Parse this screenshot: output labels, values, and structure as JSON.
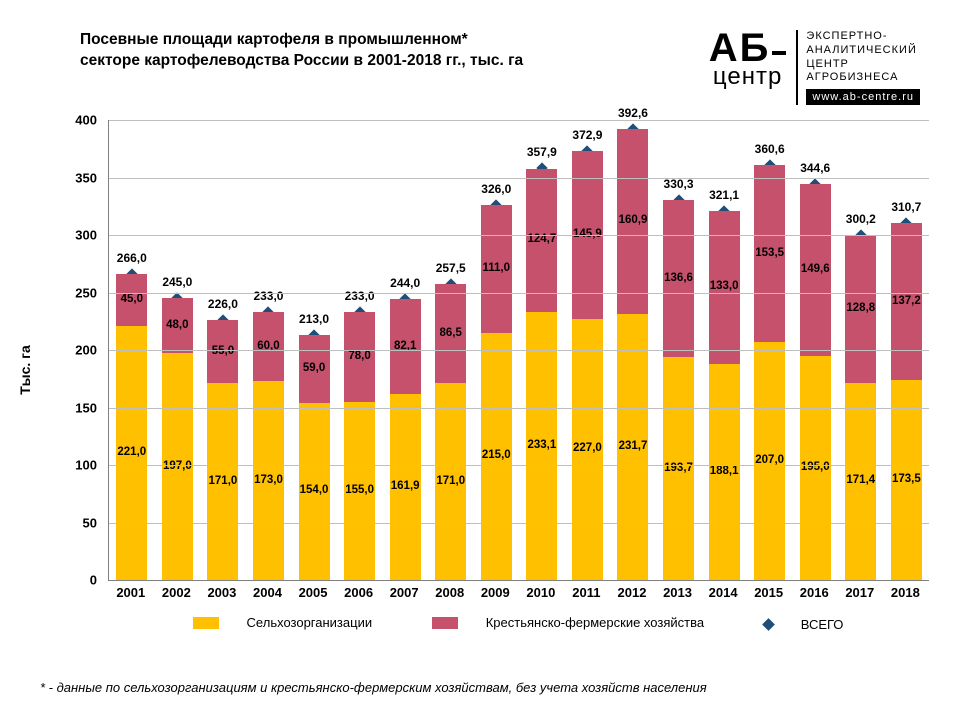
{
  "title_line1": "Посевные площади картофеля в промышленном*",
  "title_line2": "секторе картофелеводства России в 2001-2018 гг., тыс. га",
  "brand": {
    "ab": "АБ",
    "centr": "центр",
    "desc1": "ЭКСПЕРТНО-",
    "desc2": "АНАЛИТИЧЕСКИЙ",
    "desc3": "ЦЕНТР",
    "desc4": "АГРОБИЗНЕСА",
    "url": "www.ab-centre.ru"
  },
  "footnote": "* - данные по сельхозорганизациям и крестьянско-фермерским хозяйствам, без учета хозяйств населения",
  "chart": {
    "type": "stacked-bar-with-marker",
    "ylabel": "Тыс. га",
    "ylim": [
      0,
      400
    ],
    "ytick_step": 50,
    "grid_color": "#bfbfbf",
    "background_color": "#ffffff",
    "series1_color": "#ffc000",
    "series2_color": "#c5516d",
    "marker_color": "#1f4e79",
    "label_color": "#000000",
    "categories": [
      "2001",
      "2002",
      "2003",
      "2004",
      "2005",
      "2006",
      "2007",
      "2008",
      "2009",
      "2010",
      "2011",
      "2012",
      "2013",
      "2014",
      "2015",
      "2016",
      "2017",
      "2018"
    ],
    "series1_label": "Сельхозорганизации",
    "series2_label": "Крестьянско-фермерские хозяйства",
    "total_label": "ВСЕГО",
    "series1": [
      221.0,
      197.0,
      171.0,
      173.0,
      154.0,
      155.0,
      161.9,
      171.0,
      215.0,
      233.1,
      227.0,
      231.7,
      193.7,
      188.1,
      207.0,
      195.0,
      171.4,
      173.5
    ],
    "series2": [
      45.0,
      48.0,
      55.0,
      60.0,
      59.0,
      78.0,
      82.1,
      86.5,
      111.0,
      124.7,
      145.9,
      160.9,
      136.6,
      133.0,
      153.5,
      149.6,
      128.8,
      137.2
    ],
    "totals": [
      266.0,
      245.0,
      226.0,
      233.0,
      213.0,
      233.0,
      244.0,
      257.5,
      326.0,
      357.9,
      372.9,
      392.6,
      330.3,
      321.1,
      360.6,
      344.6,
      300.2,
      310.7
    ],
    "series1_dl": [
      "221,0",
      "197,0",
      "171,0",
      "173,0",
      "154,0",
      "155,0",
      "161,9",
      "171,0",
      "215,0",
      "233,1",
      "227,0",
      "231,7",
      "193,7",
      "188,1",
      "207,0",
      "195,0",
      "171,4",
      "173,5"
    ],
    "series2_dl": [
      "45,0",
      "48,0",
      "55,0",
      "60,0",
      "59,0",
      "78,0",
      "82,1",
      "86,5",
      "111,0",
      "124,7",
      "145,9",
      "160,9",
      "136,6",
      "133,0",
      "153,5",
      "149,6",
      "128,8",
      "137,2"
    ],
    "totals_dl": [
      "266,0",
      "245,0",
      "226,0",
      "233,0",
      "213,0",
      "233,0",
      "244,0",
      "257,5",
      "326,0",
      "357,9",
      "372,9",
      "392,6",
      "330,3",
      "321,1",
      "360,6",
      "344,6",
      "300,2",
      "310,7"
    ]
  }
}
